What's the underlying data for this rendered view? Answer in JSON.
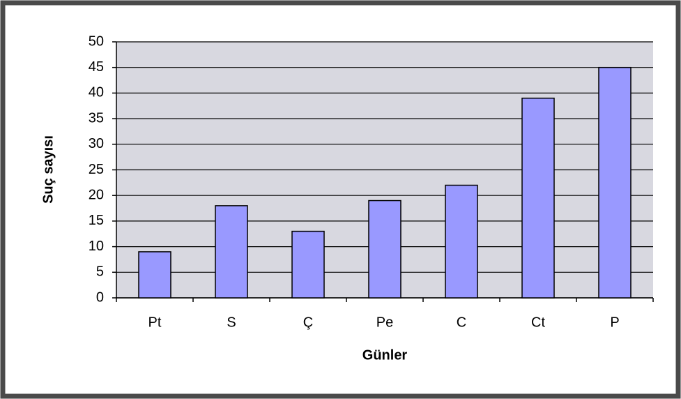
{
  "chart_data": {
    "type": "bar",
    "categories": [
      "Pt",
      "S",
      "Ç",
      "Pe",
      "C",
      "Ct",
      "P"
    ],
    "values": [
      9,
      18,
      13,
      19,
      22,
      39,
      45
    ],
    "color": "#9999ff",
    "x_label": "Günler",
    "y_label": "Suç sayısı",
    "ylim": [
      0,
      50
    ],
    "yticks": [
      0,
      5,
      10,
      15,
      20,
      25,
      30,
      35,
      40,
      45,
      50
    ],
    "grid": true
  }
}
